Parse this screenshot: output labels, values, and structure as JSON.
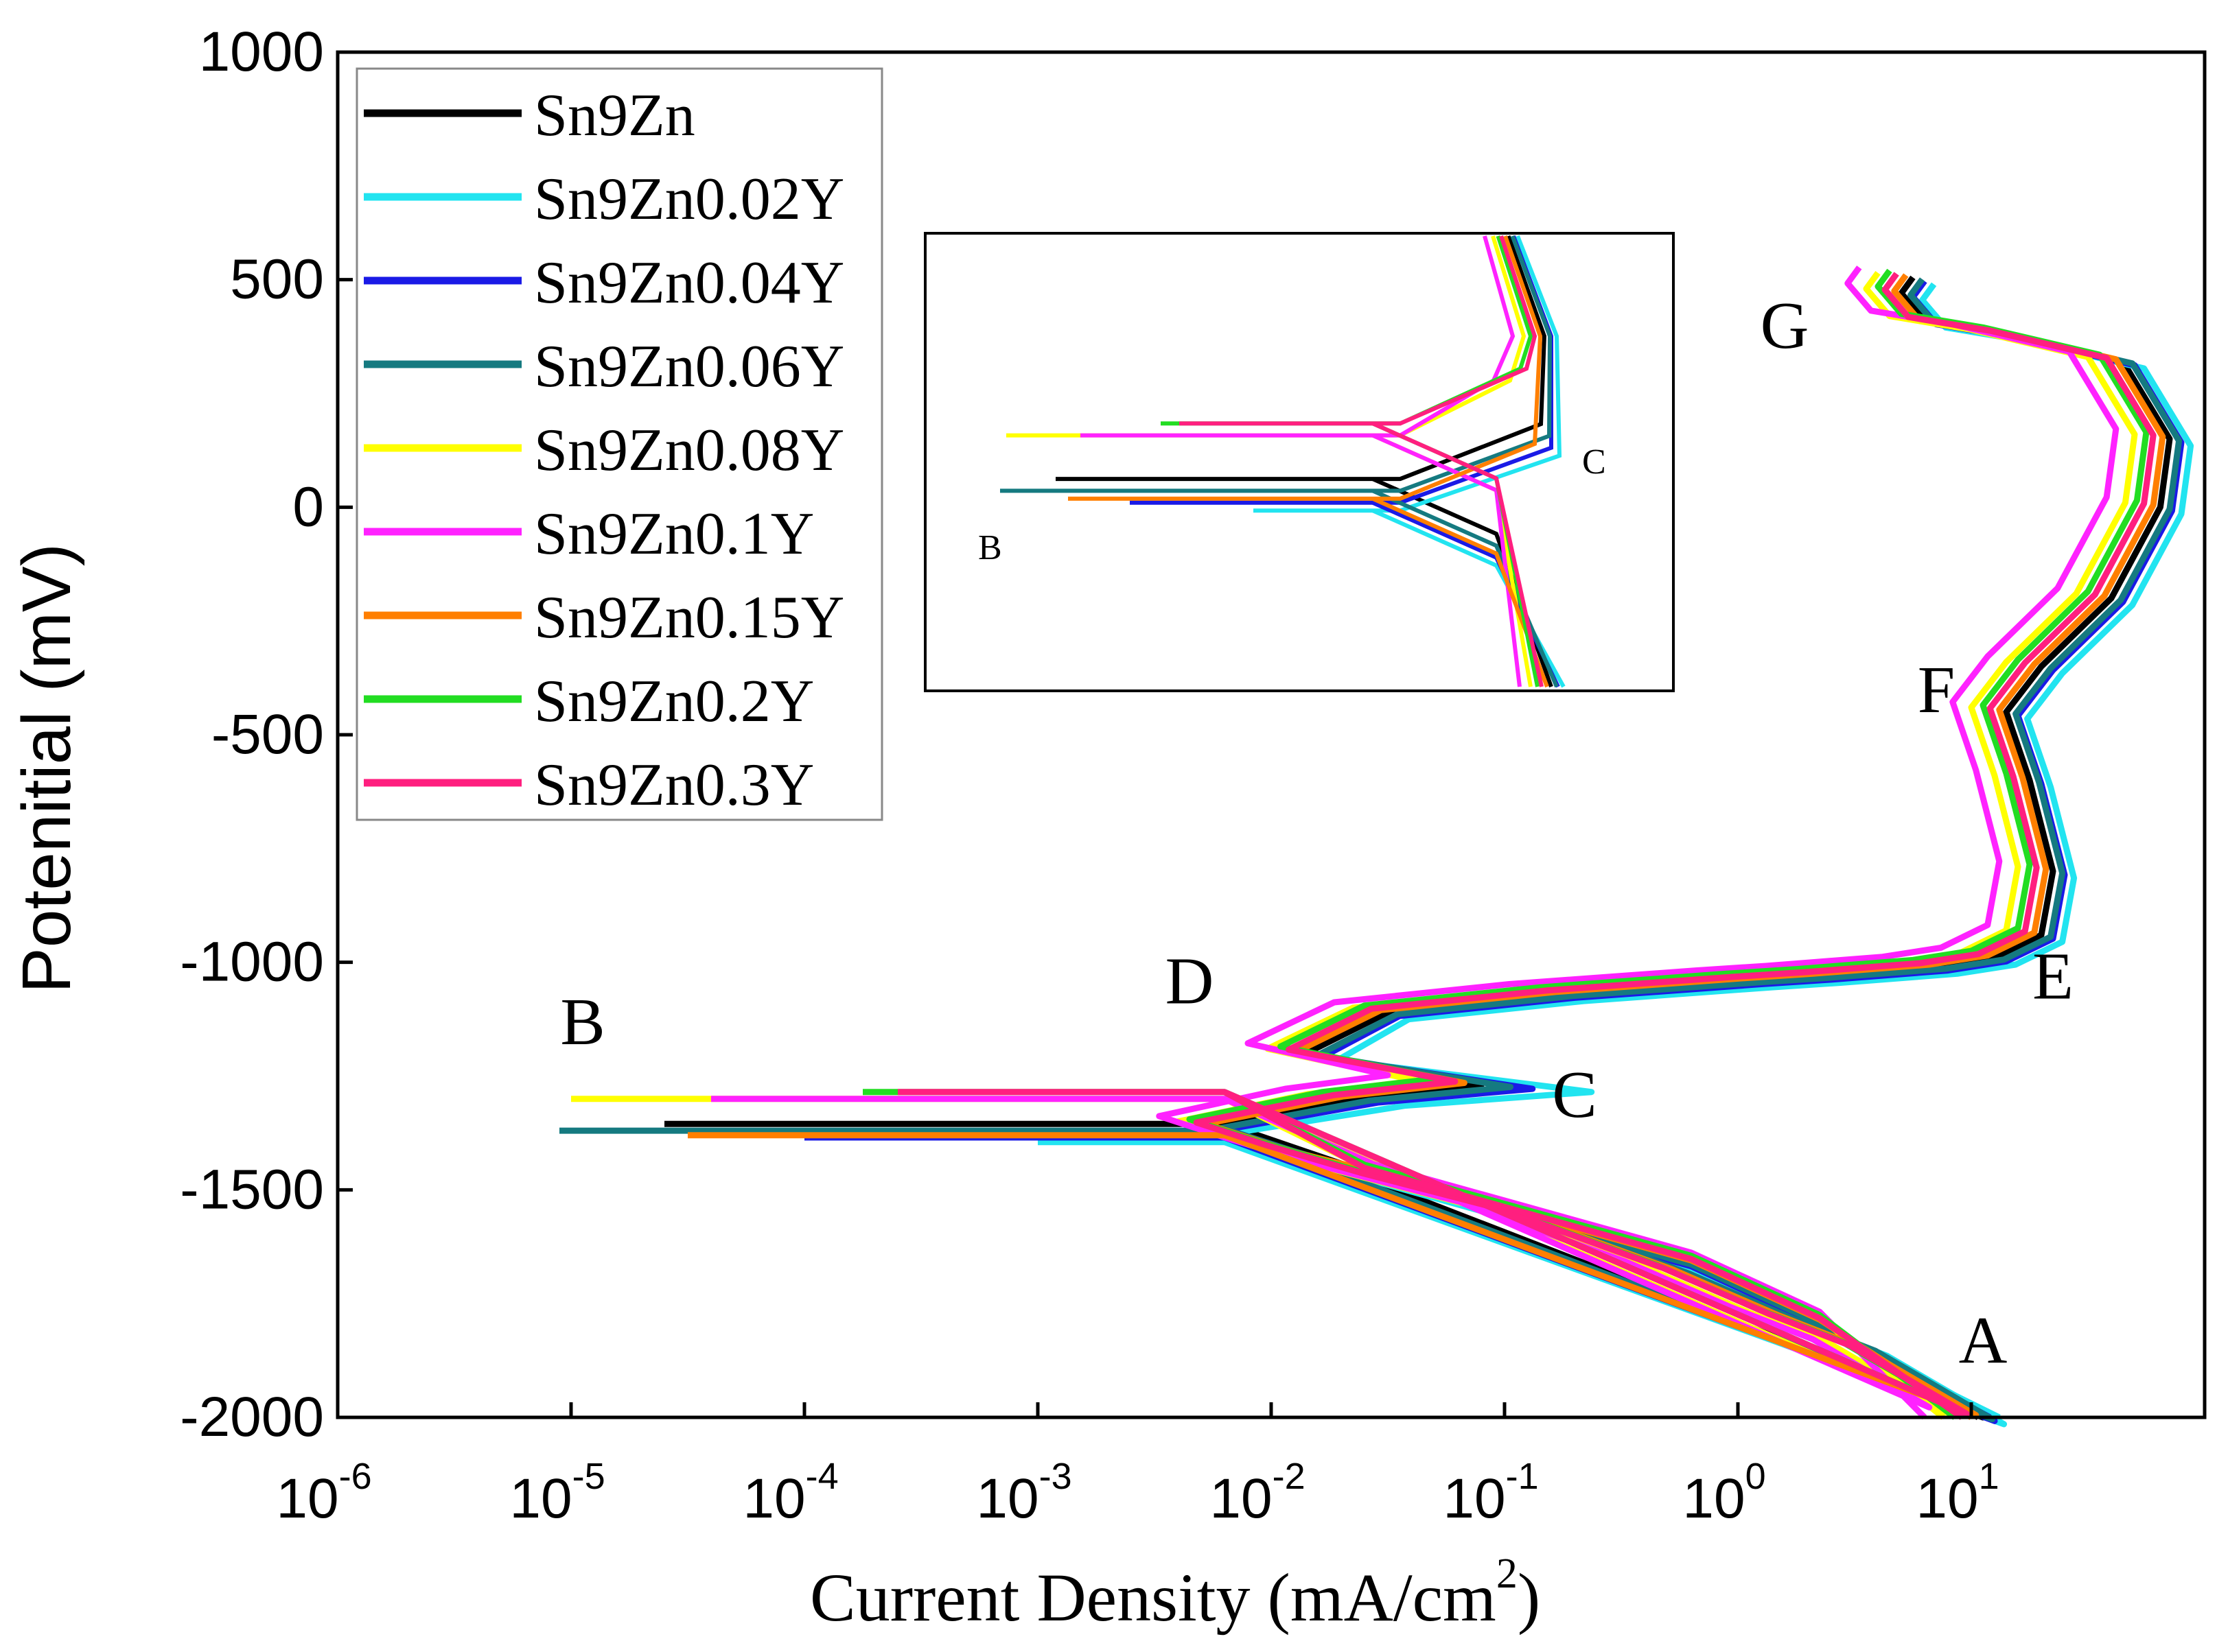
{
  "chart_data": {
    "type": "line",
    "title": "",
    "xlabel": "Current Density  (mA/cm",
    "xlabel_sup": "2",
    "xlabel_close": ")",
    "ylabel": "Potenitial (mV)",
    "xscale": "log",
    "xlim_log10": [
      -6,
      2
    ],
    "ylim": [
      -2000,
      1000
    ],
    "yticks": [
      {
        "value": 1000,
        "label": "1000"
      },
      {
        "value": 500,
        "label": "500"
      },
      {
        "value": 0,
        "label": "0"
      },
      {
        "value": -500,
        "label": "-500"
      },
      {
        "value": -1000,
        "label": "-1000"
      },
      {
        "value": -1500,
        "label": "-1500"
      },
      {
        "value": -2000,
        "label": "-2000"
      }
    ],
    "xticks": [
      {
        "exp": -6,
        "base": "10",
        "sup": "-6"
      },
      {
        "exp": -5,
        "base": "10",
        "sup": "-5"
      },
      {
        "exp": -4,
        "base": "10",
        "sup": "-4"
      },
      {
        "exp": -3,
        "base": "10",
        "sup": "-3"
      },
      {
        "exp": -2,
        "base": "10",
        "sup": "-2"
      },
      {
        "exp": -1,
        "base": "10",
        "sup": "-1"
      },
      {
        "exp": 0,
        "base": "10",
        "sup": "0"
      },
      {
        "exp": 1,
        "base": "10",
        "sup": "1"
      }
    ],
    "legend_position": "top-left",
    "point_labels": [
      {
        "text": "A",
        "log_i": 1.05,
        "E": -1880
      },
      {
        "text": "B",
        "log_i": -4.95,
        "E": -1180
      },
      {
        "text": "C",
        "log_i": -0.7,
        "E": -1340
      },
      {
        "text": "D",
        "log_i": -2.35,
        "E": -1090
      },
      {
        "text": "E",
        "log_i": 1.35,
        "E": -1080
      },
      {
        "text": "F",
        "log_i": 0.85,
        "E": -450
      },
      {
        "text": "G",
        "log_i": 0.2,
        "E": 350
      }
    ],
    "main_backbone": [
      [
        1.0,
        -2000
      ],
      [
        0.5,
        -1850
      ],
      [
        0.15,
        -1780
      ],
      [
        -0.3,
        -1680
      ],
      [
        -1.0,
        -1550
      ],
      [
        -1.6,
        -1470
      ],
      [
        -2.0,
        -1410
      ],
      [
        -2.3,
        -1360
      ],
      [
        -1.7,
        -1300
      ],
      [
        -1.15,
        -1270
      ],
      [
        -1.9,
        -1200
      ],
      [
        -1.55,
        -1110
      ],
      [
        -0.8,
        -1070
      ],
      [
        0.0,
        -1040
      ],
      [
        0.3,
        -1030
      ],
      [
        0.8,
        -1010
      ],
      [
        1.05,
        -990
      ],
      [
        1.25,
        -940
      ],
      [
        1.3,
        -800
      ],
      [
        1.2,
        -600
      ],
      [
        1.1,
        -450
      ],
      [
        1.25,
        -350
      ],
      [
        1.55,
        -200
      ],
      [
        1.76,
        0
      ],
      [
        1.8,
        150
      ],
      [
        1.6,
        320
      ],
      [
        1.1,
        380
      ],
      [
        0.75,
        410
      ],
      [
        0.65,
        470
      ],
      [
        0.7,
        505
      ]
    ],
    "series": [
      {
        "name": "Sn9Zn",
        "color": "#000000",
        "i_shift": 0.05,
        "e_shift": 0,
        "hline_E": -1355,
        "hline_start": -4.6,
        "c_amp": 1.0
      },
      {
        "name": "Sn9Zn0.02Y",
        "color": "#22e4f0",
        "i_shift": 0.14,
        "e_shift": -15,
        "hline_E": -1395,
        "hline_start": -3.0,
        "c_amp": 1.45
      },
      {
        "name": "Sn9Zn0.04Y",
        "color": "#1a1ae6",
        "i_shift": 0.1,
        "e_shift": -8,
        "hline_E": -1385,
        "hline_start": -4.0,
        "c_amp": 1.2
      },
      {
        "name": "Sn9Zn0.06Y",
        "color": "#157a80",
        "i_shift": 0.09,
        "e_shift": -4,
        "hline_E": -1370,
        "hline_start": -5.05,
        "c_amp": 1.1
      },
      {
        "name": "Sn9Zn0.08Y",
        "color": "#ffff00",
        "i_shift": -0.1,
        "e_shift": 10,
        "hline_E": -1300,
        "hline_start": -5.0,
        "c_amp": 0.85
      },
      {
        "name": "Sn9Zn0.1Y",
        "color": "#ff22ff",
        "i_shift": -0.18,
        "e_shift": 22,
        "hline_E": -1300,
        "hline_start": -4.4,
        "c_amp": 0.8
      },
      {
        "name": "Sn9Zn0.15Y",
        "color": "#ff7f00",
        "i_shift": 0.02,
        "e_shift": 5,
        "hline_E": -1380,
        "hline_start": -4.5,
        "c_amp": 0.95
      },
      {
        "name": "Sn9Zn0.2Y",
        "color": "#22dd22",
        "i_shift": -0.05,
        "e_shift": 15,
        "hline_E": -1285,
        "hline_start": -3.75,
        "c_amp": 0.9
      },
      {
        "name": "Sn9Zn0.3Y",
        "color": "#ff1f7f",
        "i_shift": -0.02,
        "e_shift": 8,
        "hline_E": -1285,
        "hline_start": -3.6,
        "c_amp": 0.95
      }
    ],
    "inset": {
      "label_B": "B",
      "label_C": "C",
      "description_free": true
    }
  }
}
